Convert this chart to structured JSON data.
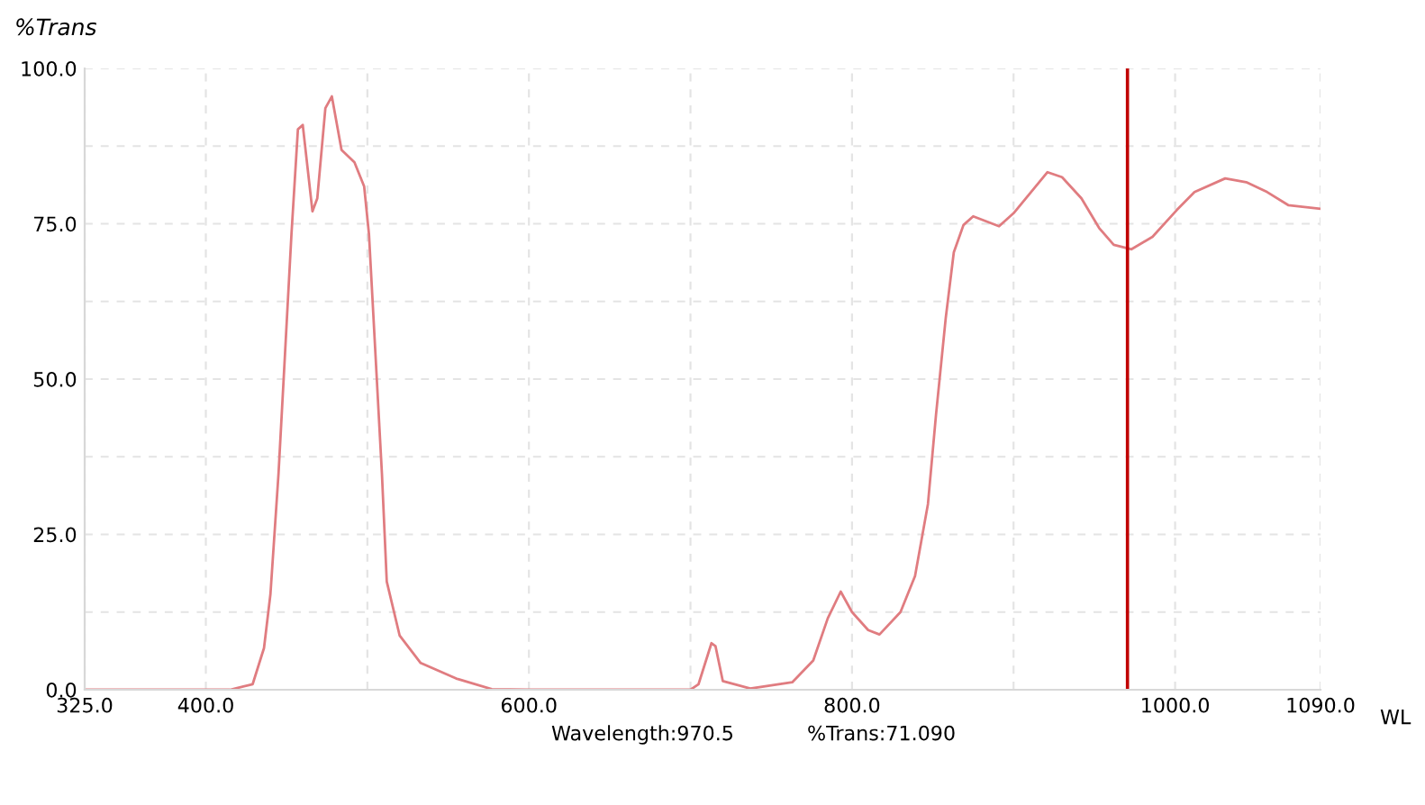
{
  "chart_data": {
    "type": "line",
    "ylabel": "%Trans",
    "xlabel": "WL",
    "x": [
      325,
      415,
      429,
      436,
      440,
      445,
      449,
      453,
      457,
      460,
      466,
      469,
      474,
      478,
      484,
      492,
      498,
      501,
      505,
      509,
      512,
      520,
      533,
      555,
      577,
      600,
      650,
      700,
      705,
      713,
      715.5,
      720,
      737,
      763,
      776,
      785,
      793,
      800,
      810,
      817,
      830,
      839,
      847,
      852,
      858,
      863,
      869,
      875,
      891,
      900,
      921,
      930,
      942,
      953,
      962,
      973,
      986,
      1001,
      1012,
      1031,
      1044,
      1057,
      1070,
      1090
    ],
    "series": [
      {
        "color": "#e07c80",
        "values": [
          0,
          0,
          0.9,
          6.7,
          15.4,
          34.8,
          54,
          73.3,
          90.2,
          90.9,
          77,
          79.1,
          93.6,
          95.5,
          86.9,
          84.9,
          81,
          73.3,
          54,
          34.8,
          17.4,
          8.7,
          4.3,
          1.8,
          0.1,
          0,
          0,
          0,
          0.9,
          7.5,
          7.0,
          1.4,
          0.2,
          1.2,
          4.7,
          11.5,
          15.8,
          12.5,
          9.6,
          8.9,
          12.5,
          18.3,
          29.9,
          44.3,
          59.8,
          70.4,
          74.8,
          76.2,
          74.6,
          76.7,
          83.3,
          82.5,
          79.1,
          74.3,
          71.6,
          70.9,
          72.9,
          77.2,
          80.1,
          82.3,
          81.7,
          80.1,
          78,
          77.4
        ]
      }
    ],
    "xlim": [
      325,
      1090
    ],
    "ylim": [
      0,
      100
    ],
    "xticks": [
      {
        "value": 325,
        "label": "325.0"
      },
      {
        "value": 400,
        "label": "400.0"
      },
      {
        "value": 500,
        "label": null
      },
      {
        "value": 600,
        "label": "600.0"
      },
      {
        "value": 700,
        "label": null
      },
      {
        "value": 800,
        "label": "800.0"
      },
      {
        "value": 900,
        "label": null
      },
      {
        "value": 1000,
        "label": "1000.0"
      },
      {
        "value": 1090,
        "label": "1090.0"
      }
    ],
    "yticks": [
      {
        "value": 0,
        "label": "0.0"
      },
      {
        "value": 12.5,
        "label": null
      },
      {
        "value": 25,
        "label": "25.0"
      },
      {
        "value": 37.5,
        "label": null
      },
      {
        "value": 50,
        "label": "50.0"
      },
      {
        "value": 62.5,
        "label": null
      },
      {
        "value": 75,
        "label": "75.0"
      },
      {
        "value": 87.5,
        "label": null
      },
      {
        "value": 100,
        "label": "100.0"
      }
    ],
    "grid": true,
    "legend": false,
    "marker": "none",
    "line_style": "solid",
    "ref_lines": [
      {
        "axis": "x",
        "value": 970.5,
        "color": "#c00000",
        "line_style": "solid"
      }
    ],
    "annotations": [
      "Wavelength:970.5",
      "%Trans:71.090"
    ]
  }
}
